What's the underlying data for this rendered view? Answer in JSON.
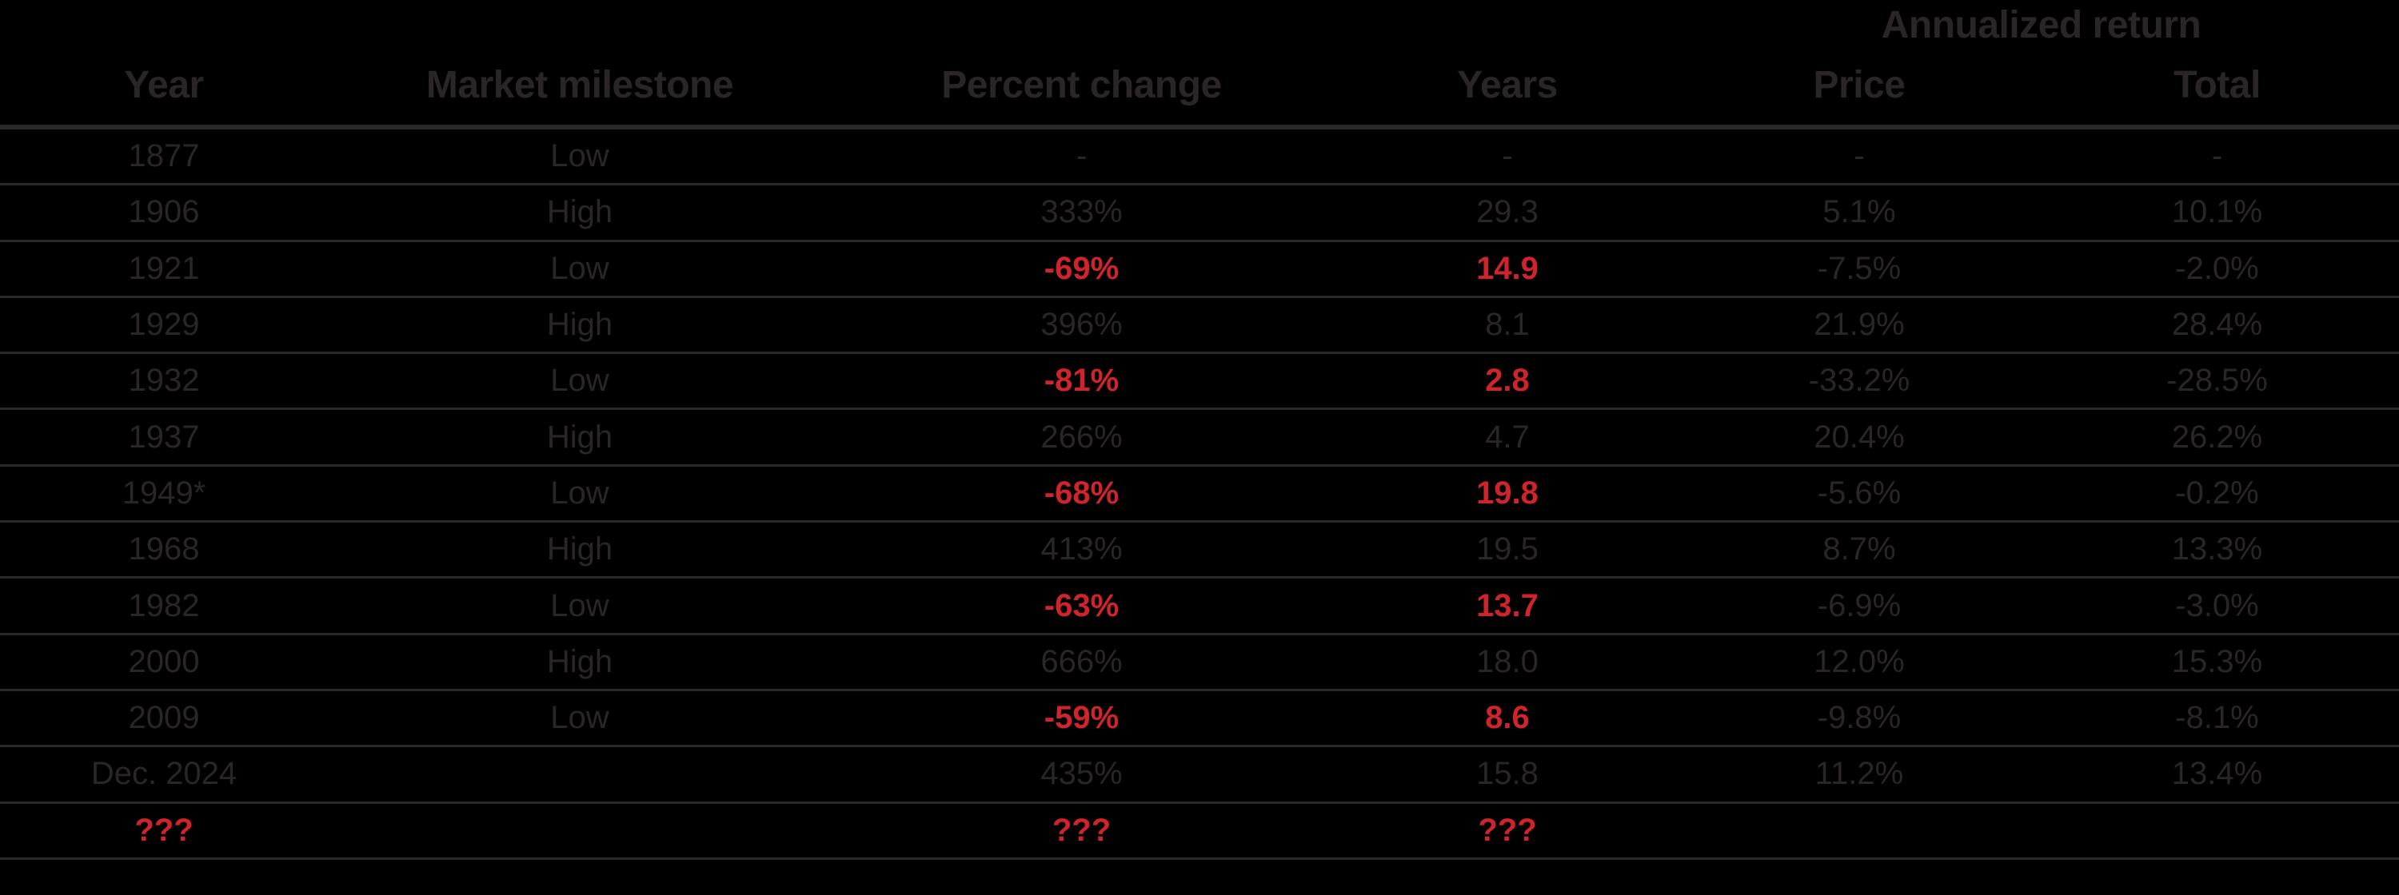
{
  "chart_data": {
    "type": "table",
    "group_header": {
      "label": "Annualized return",
      "spans": [
        "Price",
        "Total"
      ]
    },
    "columns": [
      "Year",
      "Market milestone",
      "Percent change",
      "Years",
      "Price",
      "Total"
    ],
    "column_keys": [
      "year",
      "milestone",
      "percent-change",
      "years",
      "price",
      "total"
    ],
    "rows": [
      {
        "cells": [
          {
            "t": "1877"
          },
          {
            "t": "Low"
          },
          {
            "t": "-"
          },
          {
            "t": "-"
          },
          {
            "t": "-"
          },
          {
            "t": "-"
          }
        ]
      },
      {
        "cells": [
          {
            "t": "1906"
          },
          {
            "t": "High"
          },
          {
            "t": "333%"
          },
          {
            "t": "29.3"
          },
          {
            "t": "5.1%"
          },
          {
            "t": "10.1%"
          }
        ]
      },
      {
        "cells": [
          {
            "t": "1921"
          },
          {
            "t": "Low"
          },
          {
            "t": "-69%",
            "red": true
          },
          {
            "t": "14.9",
            "red": true
          },
          {
            "t": "-7.5%"
          },
          {
            "t": "-2.0%"
          }
        ]
      },
      {
        "cells": [
          {
            "t": "1929"
          },
          {
            "t": "High"
          },
          {
            "t": "396%"
          },
          {
            "t": "8.1"
          },
          {
            "t": "21.9%"
          },
          {
            "t": "28.4%"
          }
        ]
      },
      {
        "cells": [
          {
            "t": "1932"
          },
          {
            "t": "Low"
          },
          {
            "t": "-81%",
            "red": true
          },
          {
            "t": "2.8",
            "red": true
          },
          {
            "t": "-33.2%"
          },
          {
            "t": "-28.5%"
          }
        ]
      },
      {
        "cells": [
          {
            "t": "1937"
          },
          {
            "t": "High"
          },
          {
            "t": "266%"
          },
          {
            "t": "4.7"
          },
          {
            "t": "20.4%"
          },
          {
            "t": "26.2%"
          }
        ]
      },
      {
        "cells": [
          {
            "t": "1949*"
          },
          {
            "t": "Low"
          },
          {
            "t": "-68%",
            "red": true
          },
          {
            "t": "19.8",
            "red": true
          },
          {
            "t": "-5.6%"
          },
          {
            "t": "-0.2%"
          }
        ]
      },
      {
        "cells": [
          {
            "t": "1968"
          },
          {
            "t": "High"
          },
          {
            "t": "413%"
          },
          {
            "t": "19.5"
          },
          {
            "t": "8.7%"
          },
          {
            "t": "13.3%"
          }
        ]
      },
      {
        "cells": [
          {
            "t": "1982"
          },
          {
            "t": "Low"
          },
          {
            "t": "-63%",
            "red": true
          },
          {
            "t": "13.7",
            "red": true
          },
          {
            "t": "-6.9%"
          },
          {
            "t": "-3.0%"
          }
        ]
      },
      {
        "cells": [
          {
            "t": "2000"
          },
          {
            "t": "High"
          },
          {
            "t": "666%"
          },
          {
            "t": "18.0"
          },
          {
            "t": "12.0%"
          },
          {
            "t": "15.3%"
          }
        ]
      },
      {
        "cells": [
          {
            "t": "2009"
          },
          {
            "t": "Low"
          },
          {
            "t": "-59%",
            "red": true
          },
          {
            "t": "8.6",
            "red": true
          },
          {
            "t": "-9.8%"
          },
          {
            "t": "-8.1%"
          }
        ]
      },
      {
        "cells": [
          {
            "t": "Dec. 2024"
          },
          {
            "t": ""
          },
          {
            "t": "435%"
          },
          {
            "t": "15.8"
          },
          {
            "t": "11.2%"
          },
          {
            "t": "13.4%"
          }
        ]
      },
      {
        "cells": [
          {
            "t": "???",
            "red": true
          },
          {
            "t": ""
          },
          {
            "t": "???",
            "red": true
          },
          {
            "t": "???",
            "red": true
          },
          {
            "t": ""
          },
          {
            "t": ""
          }
        ]
      }
    ],
    "colors": {
      "background": "#000000",
      "ink": "#2a2627",
      "highlight_red": "#d0242c",
      "rule": "#2b2829"
    },
    "layout": {
      "grid": "off",
      "legend": "none",
      "red_cells_meaning": "bear-market declines and unknown future entry"
    }
  }
}
